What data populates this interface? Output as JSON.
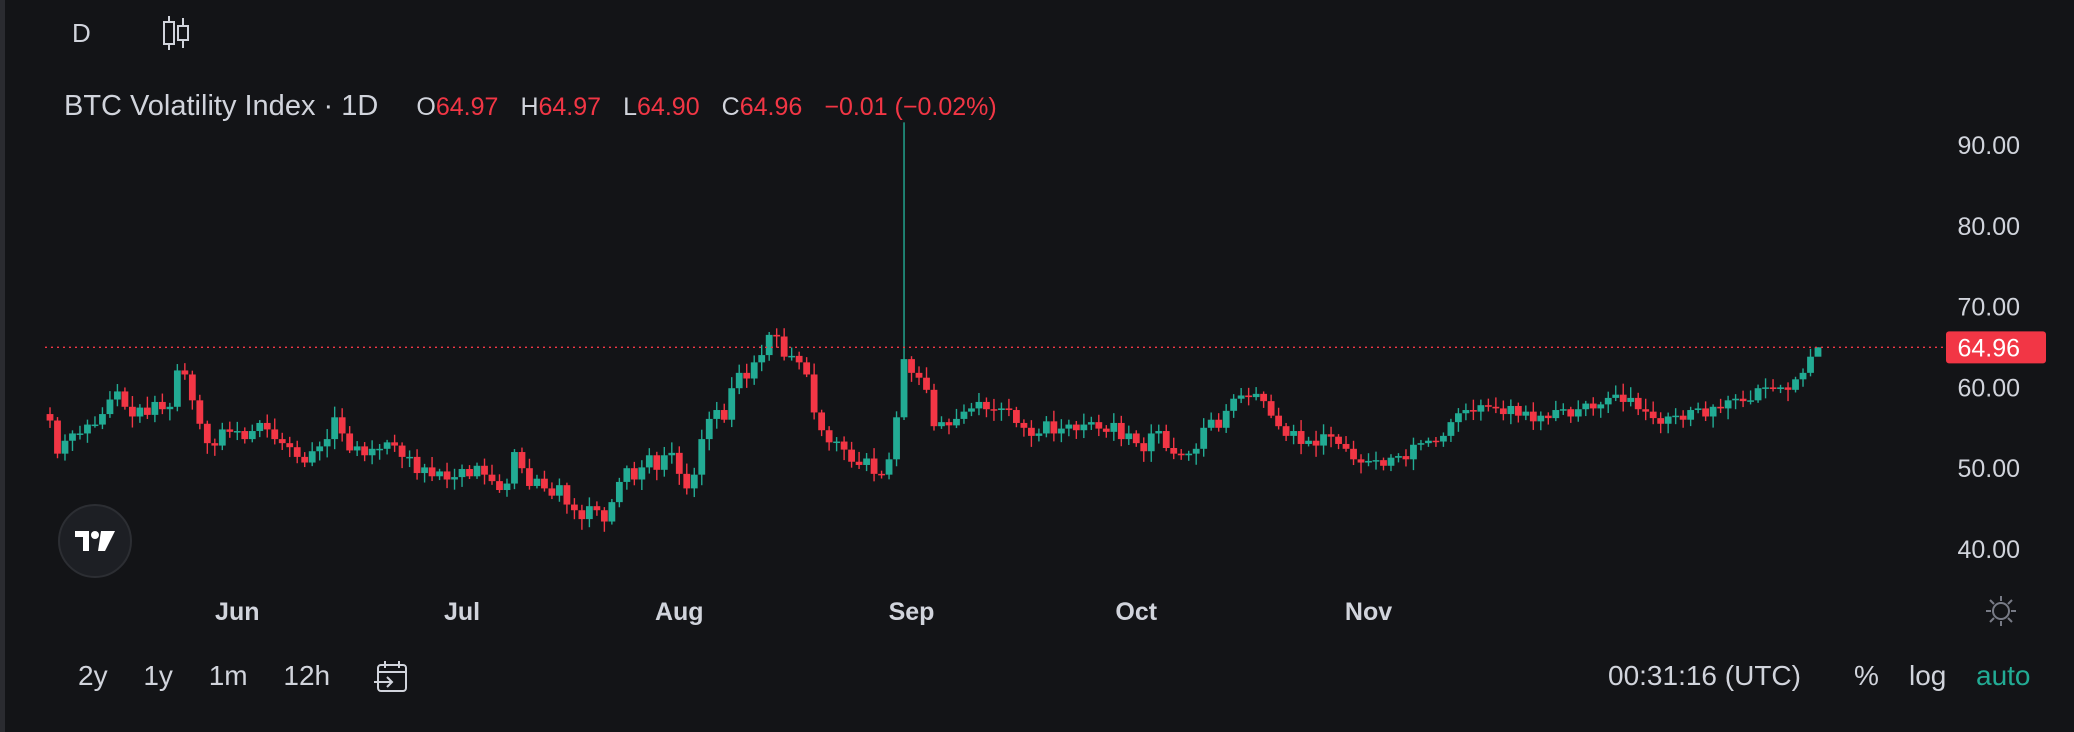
{
  "toolbar": {
    "interval_label": "D",
    "chart_type_icon": "candlestick-icon"
  },
  "legend": {
    "title": "BTC Volatility Index · 1D",
    "o_label": "O",
    "o_value": "64.97",
    "h_label": "H",
    "h_value": "64.97",
    "l_label": "L",
    "l_value": "64.90",
    "c_label": "C",
    "c_value": "64.96",
    "change": "−0.01 (−0.02%)"
  },
  "bottom_bar": {
    "ranges": [
      "2y",
      "1y",
      "1m",
      "12h"
    ],
    "clock": "00:31:16 (UTC)",
    "percent_label": "%",
    "log_label": "log",
    "auto_label": "auto"
  },
  "colors": {
    "up": "#22ab94",
    "down": "#f23645",
    "background": "#131417",
    "text": "#d1d4dc",
    "price_line": "#f23645"
  },
  "chart_data": {
    "type": "candlestick",
    "title": "BTC Volatility Index · 1D",
    "ylim": [
      36,
      96
    ],
    "y_ticks": [
      "90.00",
      "80.00",
      "70.00",
      "60.00",
      "50.00",
      "40.00"
    ],
    "x_ticks": [
      {
        "label": "Jun",
        "index": 25
      },
      {
        "label": "Jul",
        "index": 55
      },
      {
        "label": "Aug",
        "index": 84
      },
      {
        "label": "Sep",
        "index": 115
      },
      {
        "label": "Oct",
        "index": 145
      },
      {
        "label": "Nov",
        "index": 176
      }
    ],
    "last_price": "64.96",
    "last_value": 64.96,
    "close": [
      55.9,
      51.8,
      53.4,
      54.3,
      54.3,
      55.4,
      55.4,
      56.7,
      58.5,
      59.5,
      57.6,
      56.4,
      57.5,
      56.6,
      58.2,
      57.3,
      57.6,
      62.1,
      61.6,
      58.4,
      55.5,
      53.1,
      52.8,
      54.8,
      54.5,
      54.6,
      53.6,
      54.6,
      55.6,
      54.8,
      53.6,
      53.1,
      52.6,
      51.4,
      50.7,
      52.1,
      52.7,
      53.6,
      56.3,
      54.3,
      52.2,
      52.7,
      51.6,
      52.4,
      52.4,
      53.2,
      52.8,
      51.4,
      51.4,
      49.4,
      50.1,
      49.0,
      49.6,
      48.6,
      48.9,
      49.9,
      49.0,
      50.3,
      49.2,
      48.4,
      47.3,
      48.1,
      52.0,
      50.0,
      47.8,
      48.7,
      47.5,
      46.6,
      47.9,
      45.5,
      44.8,
      43.7,
      45.3,
      44.8,
      43.4,
      45.8,
      48.3,
      50.0,
      48.6,
      50.1,
      51.6,
      49.8,
      51.6,
      51.9,
      49.3,
      47.5,
      49.2,
      53.6,
      56.1,
      57.2,
      56.0,
      59.9,
      61.8,
      61.1,
      63.1,
      64.0,
      66.5,
      66.3,
      63.8,
      63.9,
      63.1,
      61.6,
      56.9,
      54.7,
      53.2,
      53.3,
      52.3,
      50.8,
      50.4,
      51.2,
      49.3,
      49.2,
      51.1,
      56.3,
      63.5,
      61.8,
      61.2,
      59.7,
      55.2,
      55.7,
      55.3,
      56.1,
      57.0,
      57.4,
      58.2,
      57.3,
      57.2,
      57.4,
      57.2,
      55.6,
      55.0,
      54.0,
      54.3,
      55.8,
      54.3,
      54.9,
      55.4,
      54.7,
      55.4,
      55.7,
      54.9,
      54.5,
      55.6,
      53.6,
      54.3,
      53.1,
      52.1,
      54.3,
      54.6,
      52.5,
      51.8,
      51.6,
      51.8,
      52.4,
      55.0,
      56.0,
      55.0,
      57.1,
      58.6,
      59.0,
      58.8,
      59.2,
      58.3,
      56.5,
      55.2,
      54.0,
      54.6,
      53.0,
      53.4,
      52.8,
      54.2,
      53.9,
      53.0,
      52.4,
      51.1,
      50.7,
      50.9,
      51.0,
      50.3,
      51.3,
      51.5,
      51.1,
      52.9,
      53.1,
      53.4,
      53.3,
      54.0,
      55.7,
      56.8,
      57.2,
      57.0,
      57.8,
      57.6,
      57.4,
      56.7,
      57.7,
      56.5,
      57.0,
      55.8,
      56.5,
      56.2,
      57.2,
      57.3,
      56.4,
      57.3,
      58.0,
      57.4,
      57.9,
      58.7,
      59.1,
      58.2,
      58.7,
      57.3,
      57.0,
      56.2,
      55.5,
      56.4,
      56.5,
      56.0,
      57.2,
      57.4,
      56.4,
      57.6,
      57.4,
      58.4,
      58.6,
      58.3,
      58.4,
      59.9,
      60.0,
      59.8,
      60.0,
      59.7,
      61.0,
      61.8,
      63.8,
      64.96
    ]
  }
}
